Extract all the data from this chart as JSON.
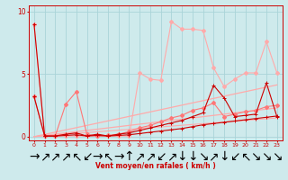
{
  "x": [
    0,
    1,
    2,
    3,
    4,
    5,
    6,
    7,
    8,
    9,
    10,
    11,
    12,
    13,
    14,
    15,
    16,
    17,
    18,
    19,
    20,
    21,
    22,
    23
  ],
  "line_pink_peak": [
    9.0,
    0.05,
    0.05,
    0.05,
    0.05,
    0.05,
    0.05,
    0.05,
    0.05,
    0.05,
    5.1,
    4.6,
    4.5,
    9.2,
    8.6,
    8.6,
    8.5,
    5.5,
    4.0,
    4.6,
    5.1,
    5.1,
    7.6,
    5.1
  ],
  "line_pink_low": [
    3.2,
    0.05,
    0.05,
    2.6,
    3.6,
    0.2,
    0.05,
    0.1,
    0.2,
    0.4,
    0.7,
    0.9,
    1.2,
    1.5,
    1.7,
    2.1,
    2.3,
    2.7,
    1.6,
    1.8,
    2.0,
    2.1,
    2.4,
    2.5
  ],
  "line_dark_varying": [
    3.2,
    0.05,
    0.05,
    0.2,
    0.3,
    0.05,
    0.2,
    0.05,
    0.2,
    0.3,
    0.5,
    0.7,
    0.9,
    1.1,
    1.3,
    1.6,
    1.9,
    4.1,
    3.1,
    1.6,
    1.7,
    1.8,
    4.3,
    1.6
  ],
  "line_dark_linear": [
    9.0,
    0.05,
    0.05,
    0.1,
    0.15,
    0.05,
    0.1,
    0.05,
    0.1,
    0.15,
    0.25,
    0.35,
    0.45,
    0.55,
    0.65,
    0.8,
    0.95,
    1.05,
    1.15,
    1.25,
    1.35,
    1.45,
    1.55,
    1.65
  ],
  "trend1": [
    0.0,
    0.18,
    0.36,
    0.54,
    0.72,
    0.9,
    1.08,
    1.26,
    1.44,
    1.62,
    1.8,
    1.98,
    2.16,
    2.34,
    2.52,
    2.7,
    2.88,
    3.06,
    3.24,
    3.42,
    3.6,
    3.78,
    3.96,
    4.14
  ],
  "trend2": [
    0.0,
    0.1,
    0.2,
    0.3,
    0.4,
    0.5,
    0.6,
    0.7,
    0.8,
    0.9,
    1.0,
    1.1,
    1.2,
    1.3,
    1.4,
    1.5,
    1.6,
    1.7,
    1.8,
    1.9,
    2.0,
    2.1,
    2.2,
    2.3
  ],
  "trend3": [
    0.0,
    0.065,
    0.13,
    0.195,
    0.26,
    0.325,
    0.39,
    0.455,
    0.52,
    0.585,
    0.65,
    0.715,
    0.78,
    0.845,
    0.91,
    0.975,
    1.04,
    1.105,
    1.17,
    1.235,
    1.3,
    1.365,
    1.43,
    1.495
  ],
  "bg_color": "#ceeaec",
  "grid_color": "#aad4d8",
  "color_dark_red": "#cc0000",
  "color_light_pink": "#ffaaaa",
  "color_mid_pink": "#ff7777",
  "ylabel_values": [
    0,
    5,
    10
  ],
  "xlim": [
    -0.5,
    23.5
  ],
  "ylim": [
    -0.3,
    10.5
  ],
  "xlabel": "Vent moyen/en rafales ( km/h )",
  "arrow_symbols": [
    "→",
    "↗",
    "↗",
    "↗",
    "↖",
    "↙",
    "→",
    "↖",
    "→",
    "↑",
    "↗",
    "↗",
    "↙",
    "↗",
    "↓",
    "↓",
    "↘",
    "↗",
    "↓",
    "↙",
    "↖",
    "↘",
    "↘",
    "↘"
  ]
}
